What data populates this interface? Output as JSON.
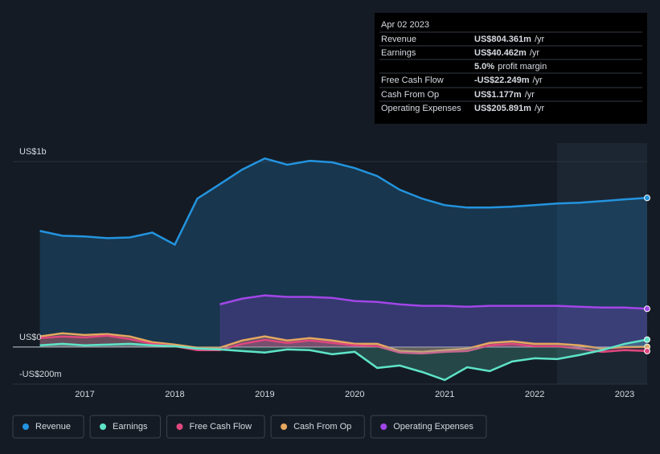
{
  "chart_data": {
    "type": "line",
    "x": [
      2016.5,
      2016.75,
      2017,
      2017.25,
      2017.5,
      2017.75,
      2018,
      2018.25,
      2018.5,
      2018.75,
      2019,
      2019.25,
      2019.5,
      2019.75,
      2020,
      2020.25,
      2020.5,
      2020.75,
      2021,
      2021.25,
      2021.5,
      2021.75,
      2022,
      2022.25,
      2022.5,
      2022.75,
      2023,
      2023.25
    ],
    "series": [
      {
        "name": "Revenue",
        "color": "#2394df",
        "values": [
          626,
          600,
          596,
          587,
          591,
          617,
          552,
          800,
          878,
          957,
          1017,
          983,
          1004,
          996,
          965,
          922,
          848,
          800,
          765,
          752,
          752,
          757,
          765,
          774,
          778,
          787,
          796,
          804
        ]
      },
      {
        "name": "Earnings",
        "color": "#5ee4c8",
        "values": [
          9,
          17,
          9,
          13,
          17,
          9,
          4,
          -9,
          -13,
          -22,
          -30,
          -13,
          -17,
          -39,
          -26,
          -113,
          -100,
          -135,
          -178,
          -109,
          -130,
          -78,
          -61,
          -65,
          -43,
          -17,
          17,
          40
        ]
      },
      {
        "name": "Free Cash Flow",
        "color": "#e0477e",
        "values": [
          48,
          57,
          52,
          61,
          43,
          17,
          4,
          -17,
          -17,
          17,
          39,
          22,
          35,
          22,
          9,
          4,
          -30,
          -35,
          -26,
          -22,
          9,
          17,
          4,
          4,
          -9,
          -26,
          -17,
          -22
        ]
      },
      {
        "name": "Cash From Op",
        "color": "#e5a85f",
        "values": [
          57,
          74,
          65,
          70,
          57,
          26,
          13,
          -4,
          -4,
          35,
          57,
          35,
          48,
          35,
          17,
          17,
          -22,
          -26,
          -17,
          -9,
          22,
          30,
          17,
          17,
          9,
          -9,
          0,
          1
        ]
      },
      {
        "name": "Operating Expenses",
        "color": "#a246e8",
        "values": [
          null,
          null,
          null,
          null,
          null,
          null,
          null,
          null,
          230,
          261,
          278,
          270,
          270,
          265,
          248,
          243,
          230,
          222,
          222,
          217,
          222,
          222,
          222,
          222,
          217,
          213,
          213,
          206
        ]
      }
    ],
    "xlim": [
      2016.2,
      2023.25
    ],
    "xticks": [
      2017,
      2018,
      2019,
      2020,
      2021,
      2022,
      2023
    ],
    "ylim": [
      -200,
      1100
    ],
    "yticks": [
      {
        "value": -200,
        "label": "-US$200m"
      },
      {
        "value": 0,
        "label": "US$0"
      },
      {
        "value": 1000,
        "label": "US$1b"
      }
    ],
    "grid": true
  },
  "tooltip": {
    "date": "Apr 02 2023",
    "rows": [
      {
        "label": "Revenue",
        "value": "US$804.361m",
        "unit": "/yr",
        "color": "#2394df"
      },
      {
        "label": "Earnings",
        "value": "US$40.462m",
        "unit": "/yr",
        "color": "#5ee4c8"
      },
      {
        "label": "Free Cash Flow",
        "value": "-US$22.249m",
        "unit": "/yr",
        "color": "#e84d4d"
      },
      {
        "label": "Cash From Op",
        "value": "US$1.177m",
        "unit": "/yr",
        "color": "#e5a85f"
      },
      {
        "label": "Operating Expenses",
        "value": "US$205.891m",
        "unit": "/yr",
        "color": "#a246e8"
      }
    ],
    "margin": {
      "value": "5.0%",
      "text": "profit margin"
    }
  }
}
